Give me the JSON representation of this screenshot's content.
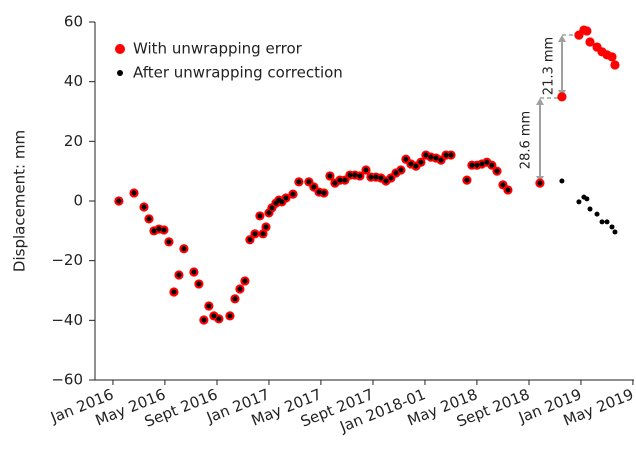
{
  "chart_data": {
    "type": "scatter",
    "y_label": "Displacement: mm",
    "x": [
      2016.038,
      2016.135,
      2016.199,
      2016.231,
      2016.263,
      2016.295,
      2016.327,
      2016.359,
      2016.391,
      2016.423,
      2016.455,
      2016.519,
      2016.551,
      2016.583,
      2016.615,
      2016.647,
      2016.679,
      2016.75,
      2016.782,
      2016.814,
      2016.846,
      2016.878,
      2016.91,
      2016.942,
      2016.962,
      2016.981,
      2017.0,
      2017.019,
      2017.045,
      2017.064,
      2017.083,
      2017.109,
      2017.154,
      2017.192,
      2017.256,
      2017.288,
      2017.321,
      2017.353,
      2017.391,
      2017.423,
      2017.455,
      2017.487,
      2017.519,
      2017.551,
      2017.583,
      2017.622,
      2017.654,
      2017.686,
      2017.718,
      2017.75,
      2017.782,
      2017.814,
      2017.846,
      2017.878,
      2017.91,
      2017.942,
      2017.974,
      2018.006,
      2018.038,
      2018.071,
      2018.103,
      2018.135,
      2018.167,
      2018.269,
      2018.301,
      2018.333,
      2018.365,
      2018.397,
      2018.429,
      2018.462,
      2018.5,
      2018.532,
      2018.737,
      2018.878,
      2018.987,
      2019.019,
      2019.038,
      2019.058,
      2019.103,
      2019.135,
      2019.167,
      2019.199,
      2019.218
    ],
    "series": [
      {
        "name": "With unwrapping error",
        "color": "#ff0000",
        "values": [
          0,
          2.7,
          -2,
          -6,
          -10,
          -9.4,
          -9.7,
          -13.7,
          -30.5,
          -24.8,
          -16,
          -23.8,
          -27.8,
          -39.9,
          -35.2,
          -38.5,
          -39.5,
          -38.5,
          -32.8,
          -29.5,
          -26.8,
          -13,
          -11,
          -5,
          -11,
          -8.7,
          -4,
          -2.3,
          -0.7,
          0.3,
          -0.3,
          1,
          2.3,
          6.4,
          6.4,
          4.7,
          3,
          2.7,
          8.4,
          6,
          7,
          7,
          8.7,
          8.7,
          8.4,
          10.4,
          8,
          8,
          7.7,
          6.7,
          7.7,
          9.4,
          10.4,
          14,
          12.4,
          11.7,
          13,
          15.4,
          14.7,
          14.4,
          13.7,
          15.4,
          15.4,
          7,
          12,
          12,
          12.4,
          13,
          12,
          10,
          5.4,
          3.7,
          6,
          34.9,
          55.6,
          57.3,
          57,
          53.3,
          51.6,
          50,
          49,
          48.3,
          45.6
        ]
      },
      {
        "name": "After unwrapping correction",
        "color": "#000000",
        "values": [
          0,
          2.7,
          -2,
          -6,
          -10,
          -9.4,
          -9.7,
          -13.7,
          -30.5,
          -24.8,
          -16,
          -23.8,
          -27.8,
          -39.9,
          -35.2,
          -38.5,
          -39.5,
          -38.5,
          -32.8,
          -29.5,
          -26.8,
          -13,
          -11,
          -5,
          -11,
          -8.7,
          -4,
          -2.3,
          -0.7,
          0.3,
          -0.3,
          1,
          2.3,
          6.4,
          6.4,
          4.7,
          3,
          2.7,
          8.4,
          6,
          7,
          7,
          8.7,
          8.7,
          8.4,
          10.4,
          8,
          8,
          7.7,
          6.7,
          7.7,
          9.4,
          10.4,
          14,
          12.4,
          11.7,
          13,
          15.4,
          14.7,
          14.4,
          13.7,
          15.4,
          15.4,
          7,
          12,
          12,
          12.4,
          13,
          12,
          10,
          5.4,
          3.7,
          6,
          6.7,
          -0.3,
          1.3,
          0.7,
          -2.7,
          -4.4,
          -7,
          -7,
          -8.7,
          -10.4
        ]
      }
    ],
    "xlim": [
      2015.885,
      2019.34
    ],
    "xticks": [
      {
        "value": 2016,
        "label": "Jan 2016"
      },
      {
        "value": 2016.333,
        "label": "May 2016"
      },
      {
        "value": 2016.667,
        "label": "Sept 2016"
      },
      {
        "value": 2017,
        "label": "Jan 2017"
      },
      {
        "value": 2017.333,
        "label": "May 2017"
      },
      {
        "value": 2017.667,
        "label": "Sept 2017"
      },
      {
        "value": 2018,
        "label": "Jan 2018-01"
      },
      {
        "value": 2018.333,
        "label": "May 2018"
      },
      {
        "value": 2018.667,
        "label": "Sept 2018"
      },
      {
        "value": 2019,
        "label": "Jan 2019"
      },
      {
        "value": 2019.333,
        "label": "May 2019"
      }
    ],
    "ylim": [
      -60,
      60
    ],
    "yticks": [
      {
        "value": -60,
        "label": "−60"
      },
      {
        "value": -40,
        "label": "−40"
      },
      {
        "value": -20,
        "label": "−20"
      },
      0,
      20,
      40,
      60
    ],
    "legend": "upper left",
    "annotations": [
      {
        "text": "28.6 mm"
      },
      {
        "text": "21.3 mm"
      }
    ]
  }
}
